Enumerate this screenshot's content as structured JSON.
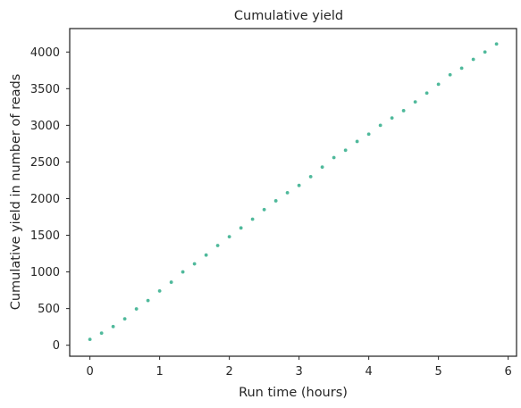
{
  "chart_data": {
    "type": "scatter",
    "title": "Cumulative yield",
    "xlabel": "Run time (hours)",
    "ylabel": "Cumulative yield in number of reads",
    "xlim": [
      -0.29,
      6.12
    ],
    "ylim": [
      -150,
      4320
    ],
    "xticks": [
      0,
      1,
      2,
      3,
      4,
      5,
      6
    ],
    "yticks": [
      0,
      500,
      1000,
      1500,
      2000,
      2500,
      3000,
      3500,
      4000
    ],
    "grid": false,
    "marker_color": "#4fb99b",
    "x": [
      0,
      0.167,
      0.333,
      0.5,
      0.667,
      0.833,
      1,
      1.167,
      1.333,
      1.5,
      1.667,
      1.833,
      2,
      2.167,
      2.333,
      2.5,
      2.667,
      2.833,
      3,
      3.167,
      3.333,
      3.5,
      3.667,
      3.833,
      4,
      4.167,
      4.333,
      4.5,
      4.667,
      4.833,
      5,
      5.167,
      5.333,
      5.5,
      5.667,
      5.833
    ],
    "y": [
      80,
      165,
      255,
      360,
      495,
      610,
      740,
      860,
      1000,
      1110,
      1230,
      1360,
      1480,
      1600,
      1720,
      1850,
      1970,
      2080,
      2180,
      2300,
      2430,
      2560,
      2660,
      2780,
      2880,
      3000,
      3100,
      3200,
      3320,
      3440,
      3560,
      3690,
      3780,
      3900,
      4000,
      4110
    ]
  }
}
